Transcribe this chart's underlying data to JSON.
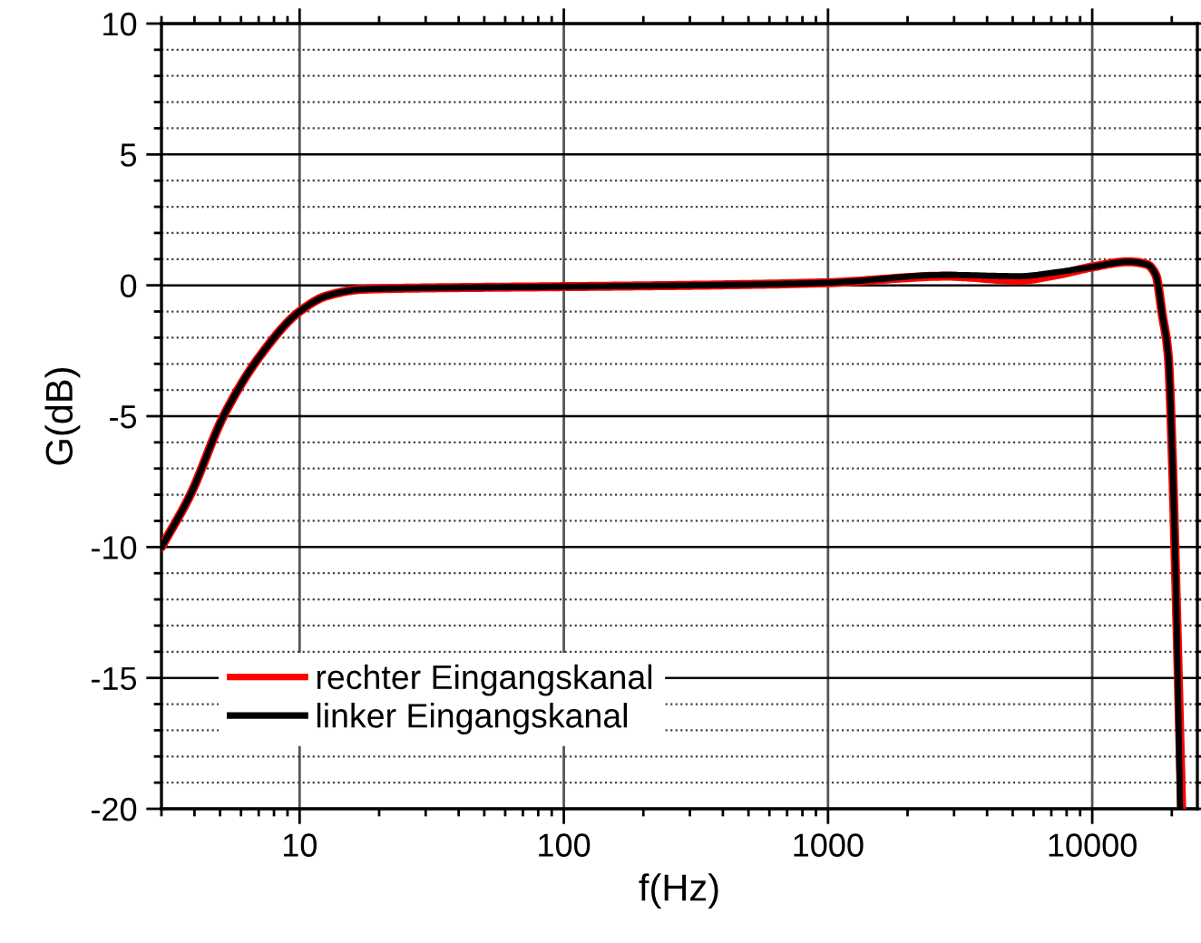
{
  "chart_data": {
    "type": "line",
    "xlabel": "f(Hz)",
    "ylabel": "G(dB)",
    "log": "x",
    "xlim": [
      3,
      25000
    ],
    "xticks": [
      10,
      100,
      1000,
      10000
    ],
    "ylim": [
      -20,
      10
    ],
    "yticks": [
      -20,
      -15,
      -10,
      -5,
      0,
      5,
      10
    ],
    "grid": true,
    "legend": "bottom left",
    "line_style": "solid",
    "marker": "none",
    "series": [
      {
        "name": "rechter Eingangskanal",
        "color": "#ff0000",
        "x": [
          3,
          3.86,
          5.15,
          7.08,
          10,
          12.7,
          17.4,
          30,
          100,
          300,
          1000,
          2800,
          5300,
          7300,
          10000,
          13700,
          16100,
          17400,
          18400,
          19400,
          20100,
          20700,
          21800
        ],
        "values": [
          -10,
          -8,
          -5,
          -2.7,
          -1.0,
          -0.4,
          -0.15,
          -0.1,
          -0.05,
          0,
          0.1,
          0.35,
          0.2,
          0.4,
          0.7,
          0.9,
          0.8,
          0.4,
          -1.1,
          -2.7,
          -6.6,
          -11.2,
          -20
        ]
      },
      {
        "name": "linker Eingangskanal",
        "color": "#000000",
        "x": [
          3,
          3.86,
          5.15,
          7.08,
          10,
          12.7,
          17.4,
          30,
          100,
          300,
          1000,
          2800,
          5300,
          7300,
          10000,
          13700,
          16100,
          17400,
          18400,
          19400,
          20100,
          20700,
          21500
        ],
        "values": [
          -10,
          -8,
          -5,
          -2.7,
          -1.0,
          -0.4,
          -0.15,
          -0.1,
          -0.05,
          0,
          0.1,
          0.4,
          0.35,
          0.5,
          0.7,
          0.9,
          0.8,
          0.4,
          -1.1,
          -2.7,
          -6.6,
          -11.2,
          -20
        ]
      }
    ]
  }
}
